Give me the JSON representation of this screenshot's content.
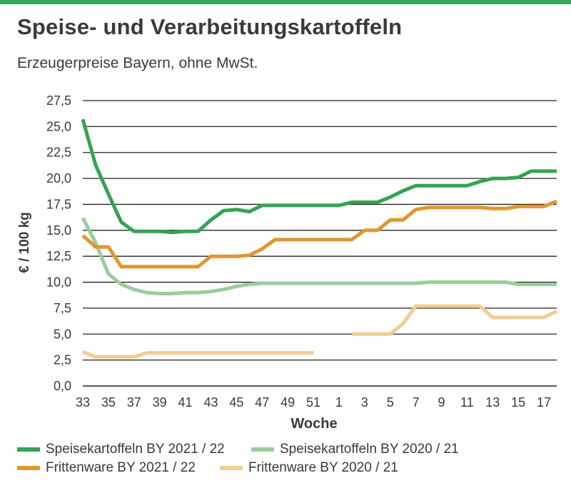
{
  "title": "Speise- und Verarbeitungskartoffeln",
  "subtitle": "Erzeugerpreise Bayern, ohne MwSt.",
  "colors": {
    "accent_bar": "#3aa55a",
    "grid": "#222222",
    "text": "#3a3a3a"
  },
  "chart_data": {
    "type": "line",
    "title": "Speise- und Verarbeitungskartoffeln",
    "subtitle": "Erzeugerpreise Bayern, ohne MwSt.",
    "xlabel": "Woche",
    "ylabel": "€ / 100 kg",
    "ylim": [
      0,
      27.5
    ],
    "y_ticks": [
      "0,0",
      "2,5",
      "5,0",
      "7,5",
      "10,0",
      "12,5",
      "15,0",
      "17,5",
      "20,0",
      "22,5",
      "25,0",
      "27,5"
    ],
    "x_ticks": [
      "33",
      "35",
      "37",
      "39",
      "41",
      "43",
      "45",
      "47",
      "49",
      "51",
      "1",
      "3",
      "5",
      "7",
      "9",
      "11",
      "13",
      "15",
      "17"
    ],
    "grid": "horizontal",
    "legend_position": "bottom",
    "x_weeks": [
      "33",
      "34",
      "35",
      "36",
      "37",
      "38",
      "39",
      "40",
      "41",
      "42",
      "43",
      "44",
      "45",
      "46",
      "47",
      "48",
      "49",
      "50",
      "51",
      "52",
      "1",
      "2",
      "3",
      "4",
      "5",
      "6",
      "7",
      "8",
      "9",
      "10",
      "11",
      "12",
      "13",
      "14",
      "15",
      "16",
      "17",
      "18"
    ],
    "series": [
      {
        "name": "Speisekartoffeln BY 2021 / 22",
        "color": "#34a352",
        "values": [
          25.7,
          21.3,
          18.5,
          15.8,
          14.9,
          14.9,
          14.9,
          14.8,
          14.9,
          14.9,
          16.0,
          16.9,
          17.0,
          16.8,
          17.4,
          17.4,
          17.4,
          17.4,
          17.4,
          17.4,
          17.4,
          17.7,
          17.7,
          17.7,
          18.2,
          18.8,
          19.3,
          19.3,
          19.3,
          19.3,
          19.3,
          19.7,
          20.0,
          20.0,
          20.1,
          20.7,
          20.7,
          20.7
        ]
      },
      {
        "name": "Speisekartoffeln BY 2020 / 21",
        "color": "#9ccc9e",
        "values": [
          16.2,
          13.8,
          10.8,
          9.8,
          9.3,
          9.0,
          8.9,
          8.9,
          9.0,
          9.0,
          9.1,
          9.3,
          9.6,
          9.8,
          9.9,
          9.9,
          9.9,
          9.9,
          9.9,
          9.9,
          9.9,
          9.9,
          9.9,
          9.9,
          9.9,
          9.9,
          9.9,
          10.0,
          10.0,
          10.0,
          10.0,
          10.0,
          10.0,
          10.0,
          9.8,
          9.8,
          9.8,
          9.8
        ]
      },
      {
        "name": "Frittenware BY 2021 / 22",
        "color": "#e1962f",
        "values": [
          14.5,
          13.4,
          13.4,
          11.5,
          11.5,
          11.5,
          11.5,
          11.5,
          11.5,
          11.5,
          12.5,
          12.5,
          12.5,
          12.6,
          13.2,
          14.1,
          14.1,
          14.1,
          14.1,
          14.1,
          14.1,
          14.1,
          15.0,
          15.0,
          16.0,
          16.0,
          17.0,
          17.2,
          17.2,
          17.2,
          17.2,
          17.2,
          17.1,
          17.1,
          17.3,
          17.3,
          17.3,
          17.8
        ]
      },
      {
        "name": "Frittenware BY 2020 / 21",
        "color": "#f1cd92",
        "values": [
          3.3,
          2.8,
          2.8,
          2.8,
          2.8,
          3.2,
          3.2,
          3.2,
          3.2,
          3.2,
          3.2,
          3.2,
          3.2,
          3.2,
          3.2,
          3.2,
          3.2,
          3.2,
          3.2,
          null,
          null,
          5.0,
          5.0,
          5.0,
          5.0,
          6.0,
          7.7,
          7.7,
          7.7,
          7.7,
          7.7,
          7.7,
          6.6,
          6.6,
          6.6,
          6.6,
          6.6,
          7.2
        ]
      }
    ]
  }
}
